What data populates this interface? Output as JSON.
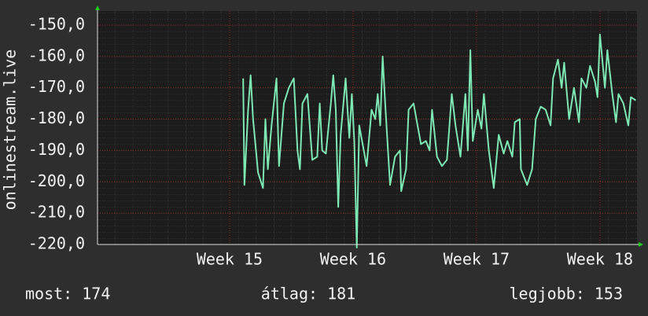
{
  "chart_data": {
    "type": "line",
    "y_label": "onlinestream.live",
    "x": [
      15.11,
      15.12,
      15.15,
      15.17,
      15.19,
      15.23,
      15.27,
      15.29,
      15.31,
      15.34,
      15.38,
      15.4,
      15.44,
      15.48,
      15.52,
      15.55,
      15.57,
      15.59,
      15.63,
      15.67,
      15.71,
      15.73,
      15.75,
      15.78,
      15.82,
      15.84,
      15.86,
      15.88,
      15.9,
      15.94,
      15.97,
      15.99,
      16.01,
      16.03,
      16.05,
      16.11,
      16.15,
      16.18,
      16.2,
      16.22,
      16.24,
      16.26,
      16.3,
      16.34,
      16.38,
      16.39,
      16.43,
      16.45,
      16.49,
      16.55,
      16.59,
      16.62,
      16.64,
      16.68,
      16.72,
      16.76,
      16.8,
      16.83,
      16.87,
      16.91,
      16.93,
      16.95,
      16.97,
      17.01,
      17.04,
      17.06,
      17.1,
      17.14,
      17.18,
      17.22,
      17.25,
      17.29,
      17.31,
      17.35,
      17.36,
      17.41,
      17.45,
      17.48,
      17.52,
      17.56,
      17.6,
      17.62,
      17.66,
      17.69,
      17.71,
      17.75,
      17.79,
      17.83,
      17.85,
      17.89,
      17.92,
      17.96,
      17.98,
      18.0,
      18.04,
      18.06,
      18.1,
      18.13,
      18.15,
      18.19,
      18.23,
      18.25,
      18.29
    ],
    "series": [
      {
        "name": "onlinestream.live",
        "color": "#7ee8b4",
        "values": [
          -167,
          -201,
          -177,
          -166,
          -180,
          -197,
          -202,
          -180,
          -196,
          -182,
          -167,
          -195,
          -175,
          -170,
          -167,
          -190,
          -196,
          -175,
          -172,
          -193,
          -192,
          -175,
          -190,
          -191,
          -175,
          -166,
          -177,
          -208,
          -185,
          -167,
          -186,
          -172,
          -187,
          -221,
          -182,
          -195,
          -177,
          -180,
          -172,
          -182,
          -160,
          -175,
          -201,
          -192,
          -190,
          -203,
          -196,
          -177,
          -175,
          -188,
          -187,
          -190,
          -177,
          -192,
          -195,
          -193,
          -172,
          -182,
          -192,
          -172,
          -190,
          -158,
          -187,
          -177,
          -183,
          -172,
          -190,
          -202,
          -185,
          -191,
          -187,
          -192,
          -181,
          -180,
          -196,
          -201,
          -196,
          -180,
          -176,
          -177,
          -182,
          -167,
          -161,
          -170,
          -162,
          -180,
          -170,
          -181,
          -167,
          -170,
          -163,
          -168,
          -173,
          -153,
          -170,
          -158,
          -172,
          -181,
          -172,
          -175,
          -182,
          -173,
          -174
        ]
      }
    ],
    "xlim": [
      13.93,
      18.3
    ],
    "xticks": [
      {
        "value": 15,
        "label": "Week 15"
      },
      {
        "value": 16,
        "label": "Week 16"
      },
      {
        "value": 17,
        "label": "Week 17"
      },
      {
        "value": 18,
        "label": "Week 18"
      }
    ],
    "ylim": [
      -220,
      -145.5
    ],
    "yticks": [
      {
        "value": -150,
        "label": "-150,0"
      },
      {
        "value": -160,
        "label": "-160,0"
      },
      {
        "value": -170,
        "label": "-170,0"
      },
      {
        "value": -180,
        "label": "-180,0"
      },
      {
        "value": -190,
        "label": "-190,0"
      },
      {
        "value": -200,
        "label": "-200,0"
      },
      {
        "value": -210,
        "label": "-210,0"
      },
      {
        "value": -220,
        "label": "-220,0"
      }
    ],
    "grid": true,
    "footer": [
      "most: 174",
      "átlag: 181",
      "legjobb: 153"
    ]
  }
}
